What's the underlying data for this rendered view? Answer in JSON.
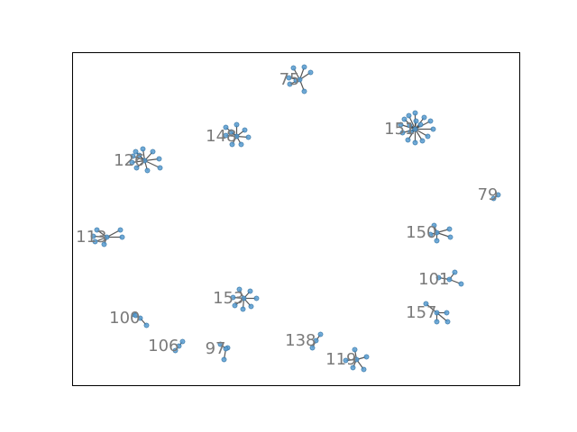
{
  "figure": {
    "frame": true
  },
  "colors": {
    "node": "#5a9fd4",
    "node_edge": "#2f6f9f",
    "edge": "#3a3a3a",
    "label": "#7a7a7a"
  },
  "chart_data": {
    "type": "network",
    "xlim": [
      0,
      496
    ],
    "ylim": [
      0,
      370
    ],
    "clusters": [
      {
        "label": "75",
        "hub": [
          252,
          30
        ],
        "leaves": [
          [
            240,
            28
          ],
          [
            245,
            17
          ],
          [
            257,
            16
          ],
          [
            264,
            22
          ],
          [
            257,
            43
          ],
          [
            241,
            35
          ],
          [
            248,
            31
          ]
        ]
      },
      {
        "label": "148",
        "hub": [
          182,
          93
        ],
        "leaves": [
          [
            170,
            83
          ],
          [
            182,
            80
          ],
          [
            191,
            86
          ],
          [
            195,
            94
          ],
          [
            187,
            102
          ],
          [
            177,
            102
          ],
          [
            170,
            92
          ],
          [
            176,
            88
          ]
        ]
      },
      {
        "label": "151",
        "hub": [
          380,
          85
        ],
        "leaves": [
          [
            368,
            74
          ],
          [
            373,
            70
          ],
          [
            380,
            67
          ],
          [
            390,
            72
          ],
          [
            397,
            76
          ],
          [
            400,
            85
          ],
          [
            394,
            93
          ],
          [
            388,
            98
          ],
          [
            380,
            100
          ],
          [
            372,
            97
          ],
          [
            366,
            89
          ],
          [
            364,
            80
          ],
          [
            386,
            80
          ],
          [
            374,
            81
          ],
          [
            381,
            76
          ],
          [
            375,
            88
          ]
        ]
      },
      {
        "label": "126",
        "hub": [
          80,
          120
        ],
        "leaves": [
          [
            70,
            110
          ],
          [
            78,
            107
          ],
          [
            89,
            110
          ],
          [
            96,
            118
          ],
          [
            97,
            128
          ],
          [
            83,
            131
          ],
          [
            71,
            128
          ],
          [
            66,
            122
          ],
          [
            67,
            115
          ],
          [
            74,
            114
          ]
        ]
      },
      {
        "label": "79",
        "hub": [
          472,
          158
        ],
        "leaves": [
          [
            467,
            162
          ]
        ]
      },
      {
        "label": "113",
        "hub": [
          38,
          205
        ],
        "leaves": [
          [
            27,
            197
          ],
          [
            53,
            197
          ],
          [
            55,
            205
          ],
          [
            35,
            213
          ],
          [
            25,
            210
          ],
          [
            23,
            204
          ]
        ]
      },
      {
        "label": "150",
        "hub": [
          404,
          200
        ],
        "leaves": [
          [
            401,
            192
          ],
          [
            418,
            196
          ],
          [
            419,
            205
          ],
          [
            404,
            209
          ],
          [
            397,
            202
          ]
        ]
      },
      {
        "label": "101",
        "hub": [
          418,
          252
        ],
        "leaves": [
          [
            424,
            244
          ],
          [
            431,
            257
          ],
          [
            406,
            250
          ]
        ]
      },
      {
        "label": "153",
        "hub": [
          190,
          273
        ],
        "leaves": [
          [
            185,
            263
          ],
          [
            197,
            265
          ],
          [
            204,
            273
          ],
          [
            198,
            282
          ],
          [
            189,
            285
          ],
          [
            180,
            281
          ],
          [
            178,
            272
          ]
        ]
      },
      {
        "label": "157",
        "hub": [
          404,
          289
        ],
        "leaves": [
          [
            392,
            279
          ],
          [
            415,
            289
          ],
          [
            416,
            299
          ],
          [
            404,
            299
          ]
        ]
      },
      {
        "label": "100",
        "hub": [
          75,
          295
        ],
        "leaves": [
          [
            68,
            291
          ],
          [
            82,
            303
          ],
          [
            70,
            292
          ]
        ]
      },
      {
        "label": "106",
        "hub": [
          118,
          326
        ],
        "leaves": [
          [
            122,
            321
          ],
          [
            114,
            331
          ]
        ]
      },
      {
        "label": "97",
        "hub": [
          170,
          329
        ],
        "leaves": [
          [
            164,
            324
          ],
          [
            172,
            328
          ],
          [
            168,
            341
          ]
        ]
      },
      {
        "label": "138",
        "hub": [
          270,
          320
        ],
        "leaves": [
          [
            275,
            313
          ],
          [
            266,
            328
          ]
        ]
      },
      {
        "label": "119",
        "hub": [
          315,
          341
        ],
        "leaves": [
          [
            313,
            330
          ],
          [
            326,
            338
          ],
          [
            323,
            352
          ],
          [
            311,
            350
          ],
          [
            303,
            342
          ]
        ]
      }
    ]
  }
}
